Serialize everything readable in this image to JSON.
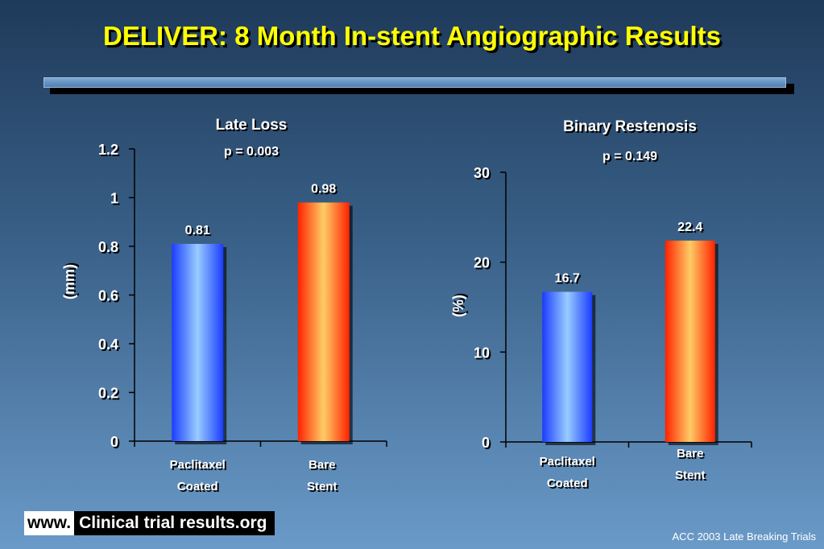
{
  "slide_title": "DELIVER: 8 Month In-stent Angiographic Results",
  "footer": {
    "www": "www.",
    "site": "Clinical trial results.org",
    "right_text": "ACC 2003 Late Breaking Trials"
  },
  "colors": {
    "title": "#ffff00",
    "paclitaxel_bar": "#3366ff",
    "bare_bar": "#ff3300"
  },
  "chart_data": [
    {
      "type": "bar",
      "title": "Late Loss",
      "subtitle": "p = 0.003",
      "ylabel": "(mm)",
      "ylim": [
        0,
        1.2
      ],
      "yticks": [
        "0",
        "0.2",
        "0.4",
        "0.6",
        "0.8",
        "1",
        "1.2"
      ],
      "categories": [
        [
          "Paclitaxel",
          "Coated"
        ],
        [
          "Bare",
          "Stent"
        ]
      ],
      "values": [
        0.81,
        0.98
      ],
      "value_labels": [
        "0.81",
        "0.98"
      ]
    },
    {
      "type": "bar",
      "title": "Binary Restenosis",
      "subtitle": "p = 0.149",
      "ylabel": "(%)",
      "ylim": [
        0,
        30
      ],
      "yticks": [
        "0",
        "10",
        "20",
        "30"
      ],
      "categories": [
        [
          "Paclitaxel",
          "Coated"
        ],
        [
          "Bare",
          "Stent"
        ]
      ],
      "values": [
        16.7,
        22.4
      ],
      "value_labels": [
        "16.7",
        "22.4"
      ]
    }
  ]
}
